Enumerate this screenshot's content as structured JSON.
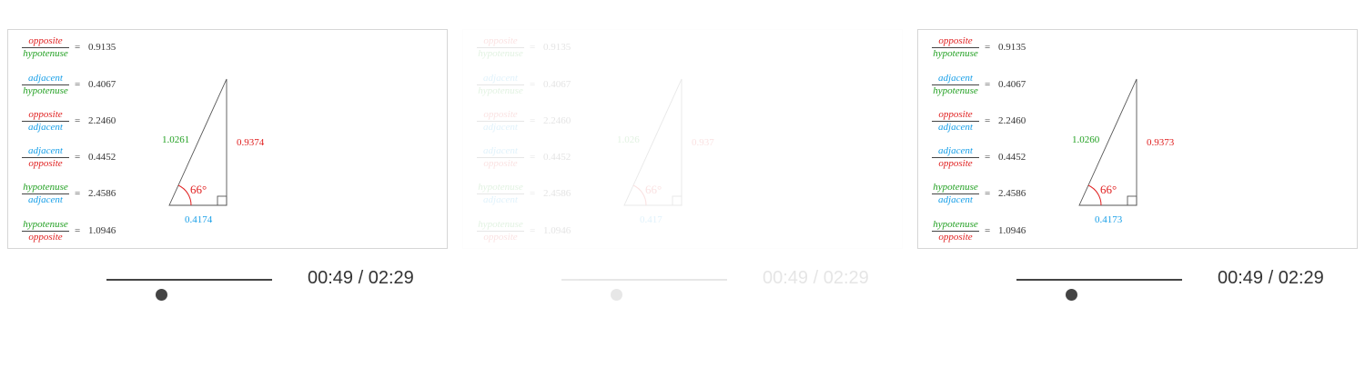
{
  "colors": {
    "opposite": "#e02020",
    "adjacent": "#1aa0e8",
    "hypotenuse": "#22a022",
    "text": "#333333"
  },
  "panels": [
    {
      "ratios": [
        {
          "num": "opposite",
          "den": "hypotenuse",
          "eq": "=",
          "value": "0.9135"
        },
        {
          "num": "adjacent",
          "den": "hypotenuse",
          "eq": "=",
          "value": "0.4067"
        },
        {
          "num": "opposite",
          "den": "adjacent",
          "eq": "=",
          "value": "2.2460"
        },
        {
          "num": "adjacent",
          "den": "opposite",
          "eq": "=",
          "value": "0.4452"
        },
        {
          "num": "hypotenuse",
          "den": "adjacent",
          "eq": "=",
          "value": "2.4586"
        },
        {
          "num": "hypotenuse",
          "den": "opposite",
          "eq": "=",
          "value": "1.0946"
        }
      ],
      "triangle": {
        "hypotenuse": "1.0261",
        "opposite": "0.9374",
        "adjacent": "0.4174",
        "angle": "66°"
      }
    },
    {
      "ratios": [
        {
          "num": "opposite",
          "den": "hypotenuse",
          "eq": "=",
          "value": "0.9135"
        },
        {
          "num": "adjacent",
          "den": "hypotenuse",
          "eq": "=",
          "value": "0.4067"
        },
        {
          "num": "opposite",
          "den": "adjacent",
          "eq": "=",
          "value": "2.2460"
        },
        {
          "num": "adjacent",
          "den": "opposite",
          "eq": "=",
          "value": "0.4452"
        },
        {
          "num": "hypotenuse",
          "den": "adjacent",
          "eq": "=",
          "value": "2.4586"
        },
        {
          "num": "hypotenuse",
          "den": "opposite",
          "eq": "=",
          "value": "1.0946"
        }
      ],
      "triangle": {
        "hypotenuse": "1.026",
        "opposite": "0.937",
        "adjacent": "0.417",
        "angle": "66°"
      }
    },
    {
      "ratios": [
        {
          "num": "opposite",
          "den": "hypotenuse",
          "eq": "=",
          "value": "0.9135"
        },
        {
          "num": "adjacent",
          "den": "hypotenuse",
          "eq": "=",
          "value": "0.4067"
        },
        {
          "num": "opposite",
          "den": "adjacent",
          "eq": "=",
          "value": "2.2460"
        },
        {
          "num": "adjacent",
          "den": "opposite",
          "eq": "=",
          "value": "0.4452"
        },
        {
          "num": "hypotenuse",
          "den": "adjacent",
          "eq": "=",
          "value": "2.4586"
        },
        {
          "num": "hypotenuse",
          "den": "opposite",
          "eq": "=",
          "value": "1.0946"
        }
      ],
      "triangle": {
        "hypotenuse": "1.0260",
        "opposite": "0.9373",
        "adjacent": "0.4173",
        "angle": "66°"
      }
    }
  ],
  "players": [
    {
      "time": "00:49 / 02:29",
      "progress": 0.33
    },
    {
      "time": "00:49 / 02:29",
      "progress": 0.33
    },
    {
      "time": "00:49 / 02:29",
      "progress": 0.33
    }
  ]
}
